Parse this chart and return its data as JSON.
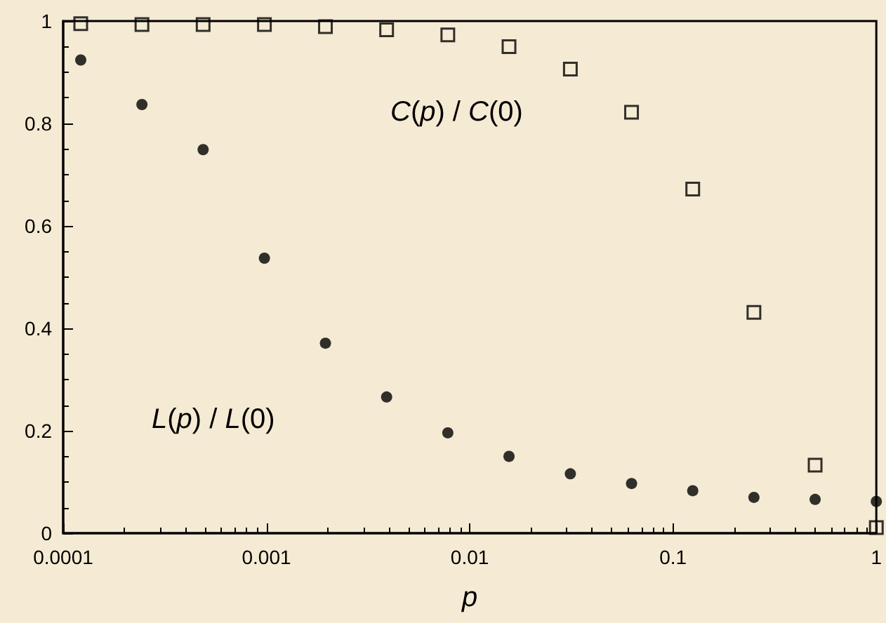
{
  "chart_data": {
    "type": "scatter",
    "xlabel": "p",
    "log": "x",
    "grid": false,
    "x": [
      0.000122,
      0.000244,
      0.000488,
      0.000977,
      0.00195,
      0.0039,
      0.0078,
      0.0156,
      0.03125,
      0.0625,
      0.125,
      0.25,
      0.5,
      1
    ],
    "series": [
      {
        "color": "#000000",
        "marker": "square",
        "values": [
          0.995,
          0.993,
          0.993,
          0.993,
          0.989,
          0.983,
          0.973,
          0.95,
          0.906,
          0.822,
          0.672,
          0.431,
          0.133,
          0.011
        ]
      },
      {
        "color": "#000000",
        "marker": "circle",
        "values": [
          0.924,
          0.837,
          0.749,
          0.537,
          0.371,
          0.266,
          0.196,
          0.15,
          0.116,
          0.097,
          0.083,
          0.07,
          0.066,
          0.062
        ]
      }
    ],
    "xlim": [
      0.0001,
      1
    ],
    "xticks": [
      0.0001,
      0.001,
      0.01,
      0.1,
      1
    ],
    "ylim": [
      0,
      1
    ],
    "yticks": [
      0,
      0.2,
      0.4,
      0.6,
      0.8,
      1
    ],
    "annotations": [
      "C(p) / C(0)",
      "L(p) / L(0)"
    ]
  }
}
